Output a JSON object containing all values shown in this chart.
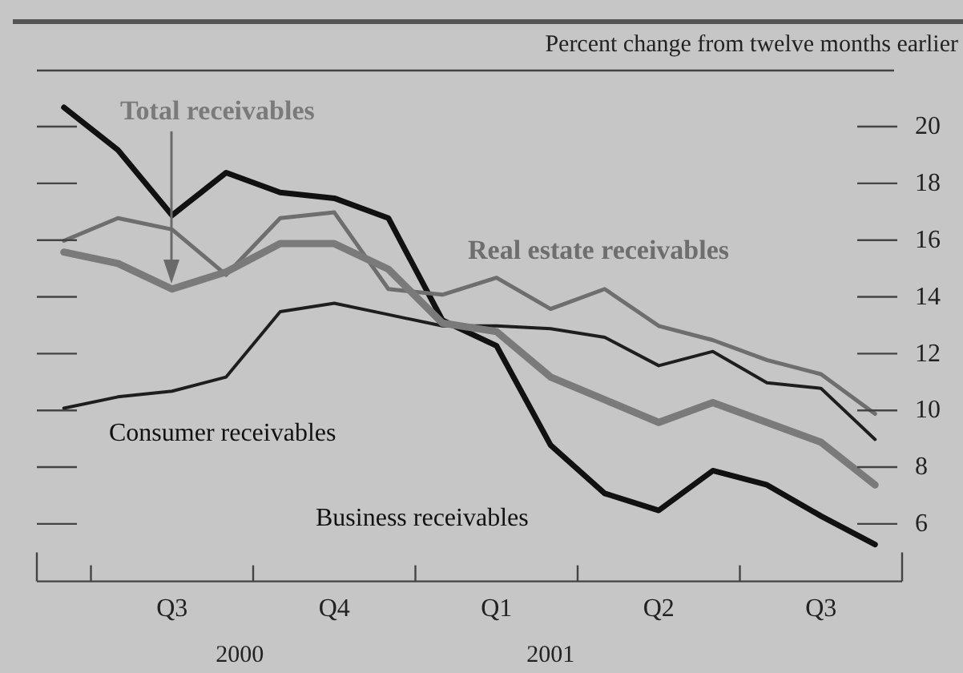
{
  "chart_data": {
    "type": "line",
    "ylabel": "Percent change from twelve months earlier",
    "categories": [
      null,
      null,
      "Q3",
      null,
      null,
      "Q4",
      null,
      null,
      "Q1",
      null,
      null,
      "Q2",
      null,
      null,
      "Q3",
      null
    ],
    "ylim": [
      4,
      22
    ],
    "yticks": [
      6,
      8,
      10,
      12,
      14,
      16,
      18,
      20
    ],
    "series": [
      {
        "name": "Total receivables",
        "color": "#7a7a7a",
        "values": [
          15.6,
          15.2,
          14.3,
          14.9,
          15.9,
          15.9,
          15.0,
          13.1,
          12.8,
          11.2,
          10.4,
          9.6,
          10.3,
          9.6,
          8.9,
          7.4
        ]
      },
      {
        "name": "Real estate receivables",
        "color": "#6e6e6e",
        "values": [
          16.0,
          16.8,
          16.4,
          14.8,
          16.8,
          17.0,
          14.3,
          14.1,
          14.7,
          13.6,
          14.3,
          13.0,
          12.5,
          11.8,
          11.3,
          9.9
        ]
      },
      {
        "name": "Consumer receivables",
        "color": "#1e1e1e",
        "values": [
          10.1,
          10.5,
          10.7,
          11.2,
          13.5,
          13.8,
          13.4,
          13.0,
          13.0,
          12.9,
          12.6,
          11.6,
          12.1,
          11.0,
          10.8,
          9.0
        ]
      },
      {
        "name": "Business receivables",
        "color": "#111111",
        "values": [
          20.7,
          19.2,
          16.9,
          18.4,
          17.7,
          17.5,
          16.8,
          13.2,
          12.3,
          8.8,
          7.1,
          6.5,
          7.9,
          7.4,
          6.3,
          5.3
        ]
      }
    ],
    "annotations": [
      "2000",
      "2001"
    ],
    "grid": false,
    "legend": false,
    "marker": "none",
    "line_style": "solid"
  }
}
